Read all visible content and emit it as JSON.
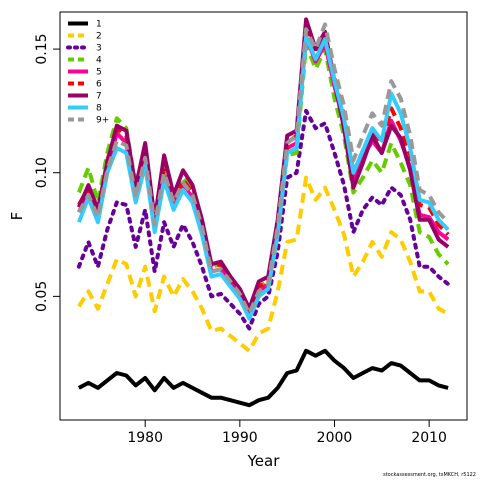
{
  "footnote": "stockassessment.org, tsMKCH, r5122",
  "chart_data": {
    "type": "line",
    "xlabel": "Year",
    "ylabel": "F",
    "xlim": [
      1971,
      2014
    ],
    "ylim": [
      0.0,
      0.165
    ],
    "xticks": [
      1980,
      1990,
      2000,
      2010
    ],
    "yticks": [
      0.05,
      0.1,
      0.15
    ],
    "ytick_labels": [
      "0.05",
      "0.10",
      "0.15"
    ],
    "legend_position": "top-left",
    "x": [
      1973,
      1974,
      1975,
      1976,
      1977,
      1978,
      1979,
      1980,
      1981,
      1982,
      1983,
      1984,
      1985,
      1986,
      1987,
      1988,
      1989,
      1990,
      1991,
      1992,
      1993,
      1994,
      1995,
      1996,
      1997,
      1998,
      1999,
      2000,
      2001,
      2002,
      2003,
      2004,
      2005,
      2006,
      2007,
      2008,
      2009,
      2010,
      2011,
      2012
    ],
    "series": [
      {
        "name": "1",
        "color": "#000000",
        "dash": "solid",
        "values": [
          0.013,
          0.015,
          0.013,
          0.016,
          0.019,
          0.018,
          0.014,
          0.017,
          0.012,
          0.017,
          0.013,
          0.015,
          0.013,
          0.011,
          0.009,
          0.009,
          0.008,
          0.007,
          0.006,
          0.008,
          0.009,
          0.013,
          0.019,
          0.02,
          0.028,
          0.026,
          0.028,
          0.024,
          0.021,
          0.017,
          0.019,
          0.021,
          0.02,
          0.023,
          0.022,
          0.019,
          0.016,
          0.016,
          0.014,
          0.013
        ]
      },
      {
        "name": "2",
        "color": "#ffcc00",
        "dash": "dashed",
        "values": [
          0.046,
          0.052,
          0.045,
          0.055,
          0.065,
          0.063,
          0.05,
          0.062,
          0.044,
          0.058,
          0.05,
          0.057,
          0.052,
          0.045,
          0.036,
          0.037,
          0.034,
          0.031,
          0.028,
          0.035,
          0.037,
          0.052,
          0.072,
          0.073,
          0.098,
          0.089,
          0.094,
          0.085,
          0.075,
          0.058,
          0.064,
          0.072,
          0.066,
          0.076,
          0.073,
          0.064,
          0.052,
          0.052,
          0.045,
          0.043
        ]
      },
      {
        "name": "3",
        "color": "#660099",
        "dash": "dotted",
        "values": [
          0.062,
          0.072,
          0.062,
          0.077,
          0.088,
          0.087,
          0.07,
          0.085,
          0.06,
          0.08,
          0.07,
          0.079,
          0.072,
          0.062,
          0.05,
          0.051,
          0.047,
          0.043,
          0.037,
          0.047,
          0.05,
          0.068,
          0.098,
          0.1,
          0.125,
          0.118,
          0.12,
          0.108,
          0.095,
          0.076,
          0.085,
          0.09,
          0.087,
          0.094,
          0.091,
          0.081,
          0.062,
          0.062,
          0.058,
          0.055
        ]
      },
      {
        "name": "4",
        "color": "#66cc00",
        "dash": "dashed",
        "values": [
          0.092,
          0.102,
          0.088,
          0.108,
          0.122,
          0.118,
          0.095,
          0.11,
          0.08,
          0.103,
          0.09,
          0.098,
          0.093,
          0.08,
          0.062,
          0.063,
          0.057,
          0.053,
          0.045,
          0.053,
          0.057,
          0.08,
          0.107,
          0.108,
          0.152,
          0.142,
          0.15,
          0.13,
          0.115,
          0.092,
          0.098,
          0.105,
          0.1,
          0.112,
          0.104,
          0.095,
          0.076,
          0.074,
          0.067,
          0.063
        ]
      },
      {
        "name": "5",
        "color": "#ff0099",
        "dash": "solid",
        "values": [
          0.084,
          0.092,
          0.082,
          0.102,
          0.116,
          0.112,
          0.091,
          0.106,
          0.078,
          0.099,
          0.087,
          0.095,
          0.09,
          0.077,
          0.06,
          0.061,
          0.056,
          0.051,
          0.043,
          0.052,
          0.055,
          0.077,
          0.11,
          0.112,
          0.155,
          0.145,
          0.152,
          0.135,
          0.12,
          0.097,
          0.106,
          0.113,
          0.108,
          0.121,
          0.113,
          0.102,
          0.083,
          0.082,
          0.076,
          0.073
        ]
      },
      {
        "name": "6",
        "color": "#ff0000",
        "dash": "dashed",
        "values": [
          0.087,
          0.094,
          0.084,
          0.105,
          0.118,
          0.115,
          0.093,
          0.108,
          0.08,
          0.101,
          0.089,
          0.097,
          0.092,
          0.079,
          0.062,
          0.063,
          0.057,
          0.052,
          0.044,
          0.054,
          0.056,
          0.079,
          0.112,
          0.115,
          0.158,
          0.148,
          0.156,
          0.138,
          0.123,
          0.1,
          0.109,
          0.117,
          0.112,
          0.126,
          0.118,
          0.107,
          0.087,
          0.086,
          0.079,
          0.075
        ]
      },
      {
        "name": "7",
        "color": "#990066",
        "dash": "solid",
        "values": [
          0.086,
          0.095,
          0.085,
          0.104,
          0.119,
          0.117,
          0.094,
          0.112,
          0.081,
          0.107,
          0.091,
          0.101,
          0.095,
          0.081,
          0.063,
          0.064,
          0.058,
          0.053,
          0.045,
          0.056,
          0.058,
          0.081,
          0.115,
          0.117,
          0.162,
          0.15,
          0.157,
          0.137,
          0.118,
          0.094,
          0.104,
          0.115,
          0.108,
          0.119,
          0.114,
          0.101,
          0.081,
          0.081,
          0.073,
          0.07
        ]
      },
      {
        "name": "8",
        "color": "#33ccff",
        "dash": "solid",
        "values": [
          0.08,
          0.09,
          0.08,
          0.1,
          0.11,
          0.108,
          0.088,
          0.103,
          0.076,
          0.097,
          0.085,
          0.093,
          0.088,
          0.075,
          0.058,
          0.059,
          0.054,
          0.049,
          0.041,
          0.05,
          0.053,
          0.075,
          0.108,
          0.11,
          0.155,
          0.146,
          0.154,
          0.137,
          0.122,
          0.1,
          0.109,
          0.118,
          0.113,
          0.132,
          0.124,
          0.11,
          0.089,
          0.088,
          0.081,
          0.077
        ]
      },
      {
        "name": "9+",
        "color": "#999999",
        "dash": "dashed",
        "values": [
          0.084,
          0.091,
          0.082,
          0.101,
          0.113,
          0.111,
          0.09,
          0.106,
          0.079,
          0.1,
          0.088,
          0.096,
          0.091,
          0.078,
          0.06,
          0.061,
          0.056,
          0.051,
          0.043,
          0.052,
          0.055,
          0.078,
          0.112,
          0.115,
          0.158,
          0.15,
          0.16,
          0.142,
          0.127,
          0.105,
          0.115,
          0.124,
          0.119,
          0.137,
          0.13,
          0.115,
          0.093,
          0.091,
          0.084,
          0.08
        ]
      }
    ]
  }
}
